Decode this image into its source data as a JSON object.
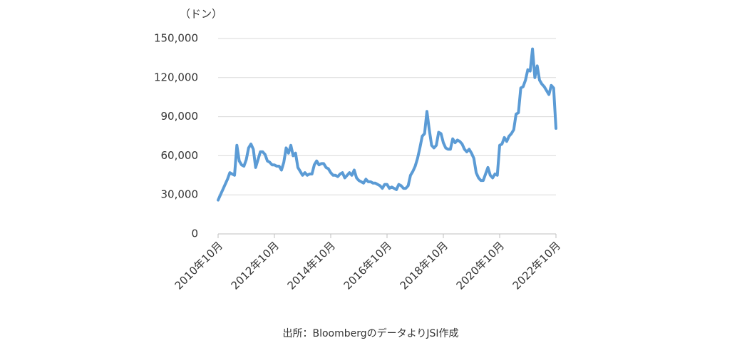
{
  "chart_data": {
    "type": "line",
    "unit_label": "（ドン）",
    "source": "出所：BloombergのデータよりJSI作成",
    "categories": [
      "2010年10月",
      null,
      null,
      null,
      null,
      null,
      null,
      null,
      null,
      null,
      null,
      null,
      null,
      null,
      null,
      null,
      null,
      null,
      null,
      null,
      null,
      null,
      null,
      null,
      "2012年10月",
      null,
      null,
      null,
      null,
      null,
      null,
      null,
      null,
      null,
      null,
      null,
      null,
      null,
      null,
      null,
      null,
      null,
      null,
      null,
      null,
      null,
      null,
      null,
      "2014年10月",
      null,
      null,
      null,
      null,
      null,
      null,
      null,
      null,
      null,
      null,
      null,
      null,
      null,
      null,
      null,
      null,
      null,
      null,
      null,
      null,
      null,
      null,
      null,
      "2016年10月",
      null,
      null,
      null,
      null,
      null,
      null,
      null,
      null,
      null,
      null,
      null,
      null,
      null,
      null,
      null,
      null,
      null,
      null,
      null,
      null,
      null,
      null,
      null,
      "2018年10月",
      null,
      null,
      null,
      null,
      null,
      null,
      null,
      null,
      null,
      null,
      null,
      null,
      null,
      null,
      null,
      null,
      null,
      null,
      null,
      null,
      null,
      null,
      null,
      "2020年10月",
      null,
      null,
      null,
      null,
      null,
      null,
      null,
      null,
      null,
      null,
      null,
      null,
      null,
      null,
      null,
      null,
      null,
      null,
      null,
      null,
      null,
      null,
      null,
      "2022年10月"
    ],
    "values": [
      26000,
      30000,
      34000,
      38000,
      42000,
      47000,
      46000,
      45000,
      68000,
      56000,
      53000,
      52000,
      57000,
      66000,
      69000,
      65000,
      51000,
      57000,
      63000,
      63000,
      61000,
      56000,
      55000,
      53000,
      53000,
      52000,
      52000,
      49000,
      55000,
      66000,
      62000,
      68000,
      60000,
      62000,
      51000,
      48000,
      45000,
      47000,
      45000,
      46000,
      46000,
      53000,
      56000,
      53000,
      54000,
      54000,
      51000,
      50000,
      47000,
      45000,
      45000,
      44000,
      46000,
      47000,
      43000,
      45000,
      47000,
      45000,
      49000,
      43000,
      41000,
      40000,
      39000,
      42000,
      40000,
      40000,
      39000,
      39000,
      38000,
      37000,
      35000,
      38000,
      38000,
      35000,
      36000,
      35000,
      34000,
      38000,
      37000,
      35000,
      35000,
      37000,
      45000,
      48000,
      52000,
      58000,
      66000,
      75000,
      77000,
      94000,
      80000,
      68000,
      66000,
      68000,
      78000,
      77000,
      70000,
      66000,
      65000,
      65000,
      73000,
      70000,
      72000,
      71000,
      69000,
      65000,
      63000,
      65000,
      62000,
      58000,
      47000,
      43000,
      41000,
      41000,
      46000,
      51000,
      45000,
      43000,
      46000,
      45000,
      68000,
      69000,
      74000,
      71000,
      75000,
      77000,
      80000,
      92000,
      93000,
      112000,
      113000,
      118000,
      126000,
      125000,
      142000,
      120000,
      129000,
      118000,
      115000,
      113000,
      110000,
      107000,
      114000,
      112000,
      81000
    ],
    "color": "#5b9bd5",
    "ylim": [
      0,
      150000
    ],
    "yticks": [
      0,
      {
        "value": 30000,
        "label": "30,000"
      },
      {
        "value": 60000,
        "label": "60,000"
      },
      {
        "value": 90000,
        "label": "90,000"
      },
      {
        "value": 120000,
        "label": "120,000"
      },
      {
        "value": 150000,
        "label": "150,000"
      }
    ],
    "grid": true
  }
}
